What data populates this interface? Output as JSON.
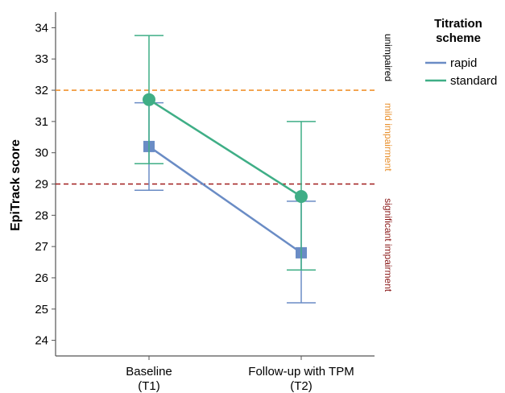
{
  "chart_data": {
    "type": "line",
    "ylabel": "EpiTrack score",
    "ylim": [
      23.5,
      34.5
    ],
    "yticks": [
      24,
      25,
      26,
      27,
      28,
      29,
      30,
      31,
      32,
      33,
      34
    ],
    "categories": [
      {
        "line1": "Baseline",
        "line2": "(T1)"
      },
      {
        "line1": "Follow-up with TPM",
        "line2": "(T2)"
      }
    ],
    "legend": {
      "title_line1": "Titration",
      "title_line2": "scheme",
      "placement": "top-right"
    },
    "series": [
      {
        "name": "rapid",
        "color": "#6a8cc5",
        "marker": "square",
        "values": [
          30.2,
          26.8
        ],
        "err_low": [
          28.8,
          25.2
        ],
        "err_high": [
          31.6,
          28.45
        ]
      },
      {
        "name": "standard",
        "color": "#3fae86",
        "marker": "circle",
        "values": [
          31.7,
          28.6
        ],
        "err_low": [
          29.65,
          26.25
        ],
        "err_high": [
          33.75,
          31.0
        ]
      }
    ],
    "reference_lines": [
      {
        "value": 32,
        "color": "#f0922e",
        "style": "dashed"
      },
      {
        "value": 29,
        "color": "#a01c1c",
        "style": "dashed"
      }
    ],
    "zone_labels": [
      {
        "text": "unimpaired",
        "color": "#000000",
        "from": 32,
        "to": 34.5
      },
      {
        "text": "mild impairment",
        "color": "#e8902e",
        "from": 29,
        "to": 32
      },
      {
        "text": "significant impairment",
        "color": "#8b1a1a",
        "from": 23.5,
        "to": 29
      }
    ],
    "grid": false
  }
}
